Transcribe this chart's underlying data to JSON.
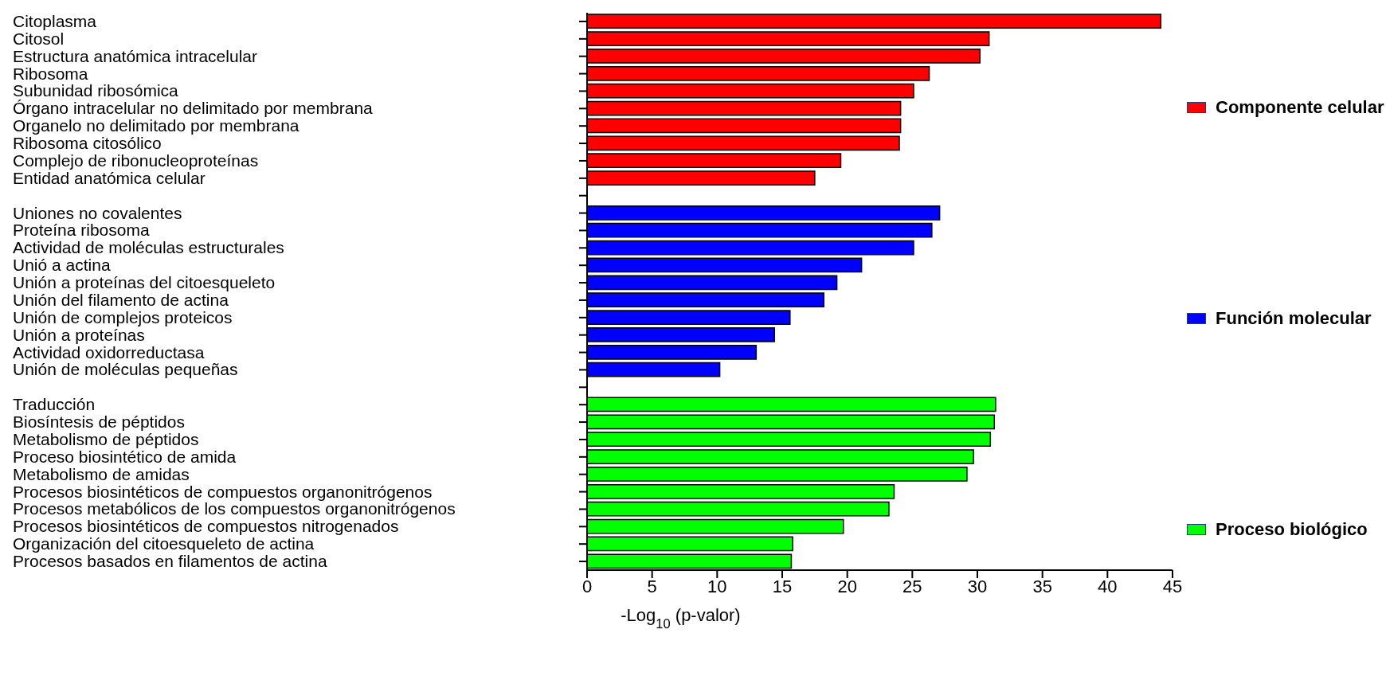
{
  "chart_data": {
    "type": "bar",
    "orientation": "horizontal",
    "stacked": true,
    "xlabel": "-Log$_{10}$ (p-valor)",
    "legend": "right",
    "categories": [
      "Citoplasma",
      "Citosol",
      "Estructura anatómica intracelular",
      "Ribosoma",
      "Subunidad ribosómica",
      "Órgano intracelular no delimitado por membrana",
      "Organelo no delimitado por membrana",
      "Ribosoma citosólico",
      "Complejo de ribonucleoproteínas",
      "Entidad anatómica celular",
      null,
      "Uniones no covalentes",
      "Proteína ribosoma",
      "Actividad de moléculas estructurales",
      "Unió a actina",
      "Unión a proteínas del citoesqueleto",
      "Unión del filamento de actina",
      "Unión de complejos proteicos",
      "Unión a proteínas",
      "Actividad oxidorreductasa",
      "Unión de moléculas pequeñas",
      null,
      "Traducción",
      "Biosíntesis de péptidos",
      "Metabolismo de péptidos",
      "Proceso biosintético de amida",
      "Metabolismo de amidas",
      "Procesos biosintéticos de compuestos organonitrógenos",
      "Procesos metabólicos de los compuestos organonitrógenos",
      "Procesos biosintéticos de compuestos nitrogenados",
      "Organización del citoesqueleto de actina",
      "Procesos basados en filamentos de actina"
    ],
    "series": [
      {
        "name": "Componente celular",
        "color": "#ff0000",
        "values": [
          44.1,
          30.9,
          30.2,
          26.3,
          25.1,
          24.1,
          24.1,
          24.0,
          19.5,
          17.5,
          null,
          null,
          null,
          null,
          null,
          null,
          null,
          null,
          null,
          null,
          null,
          null,
          null,
          null,
          null,
          null,
          null,
          null,
          null,
          null,
          null,
          null
        ]
      },
      {
        "name": "Función molecular",
        "color": "#0000ff",
        "values": [
          null,
          null,
          null,
          null,
          null,
          null,
          null,
          null,
          null,
          null,
          null,
          27.1,
          26.5,
          25.1,
          21.1,
          19.2,
          18.2,
          15.6,
          14.4,
          13.0,
          10.2,
          null,
          null,
          null,
          null,
          null,
          null,
          null,
          null,
          null,
          null,
          null
        ]
      },
      {
        "name": "Proceso biológico",
        "color": "#00ff00",
        "values": [
          null,
          null,
          null,
          null,
          null,
          null,
          null,
          null,
          null,
          null,
          null,
          null,
          null,
          null,
          null,
          null,
          null,
          null,
          null,
          null,
          null,
          null,
          31.4,
          31.3,
          31.0,
          29.7,
          29.2,
          23.6,
          23.2,
          19.7,
          15.8,
          15.7
        ]
      }
    ],
    "xlim": [
      0,
      45
    ],
    "xticks": [
      0,
      5,
      10,
      15,
      20,
      25,
      30,
      35,
      40,
      45
    ],
    "grid": false
  }
}
